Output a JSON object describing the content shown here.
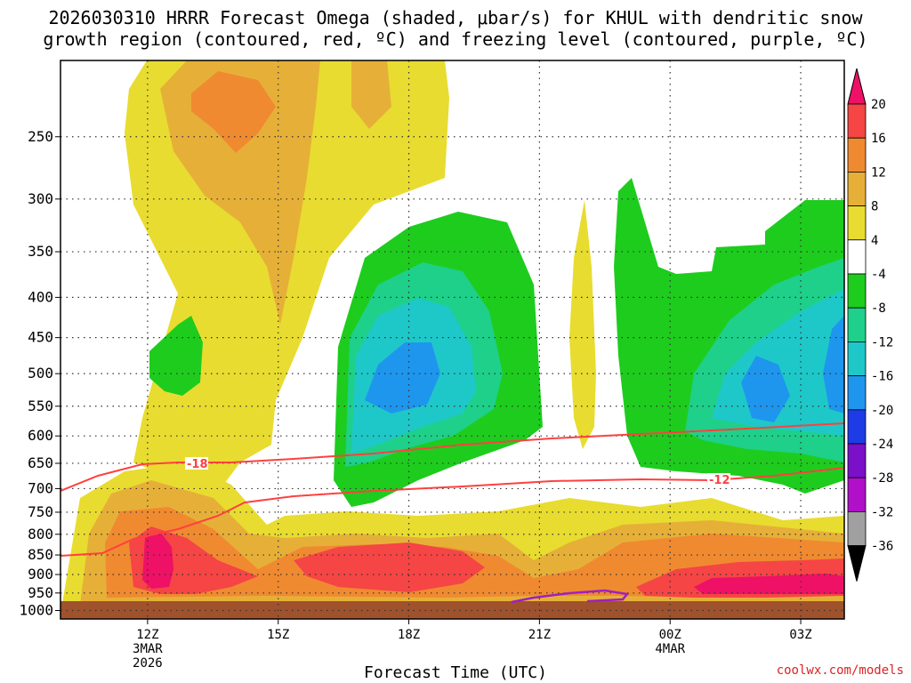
{
  "title_line1": "2026030310 HRRR Forecast Omega (shaded, μbar/s) for KHUL with dendritic snow",
  "title_line2": "growth region (contoured, red, ºC) and freezing level (contoured, purple, ºC)",
  "xaxis_title": "Forecast Time (UTC)",
  "credit": "coolwx.com/models",
  "chart_data": {
    "type": "area",
    "variable": "Omega",
    "units": "μbar/s",
    "y_axis": {
      "ticks": [
        250,
        300,
        350,
        400,
        450,
        500,
        550,
        600,
        650,
        700,
        750,
        800,
        850,
        900,
        950,
        1000
      ],
      "range": [
        200,
        1025
      ],
      "direction": "pressure decreasing upward",
      "scale": "log-pressure"
    },
    "x_axis": {
      "ticks": [
        {
          "label": "12Z",
          "sub": [
            "3MAR",
            "2026"
          ],
          "hour": 12
        },
        {
          "label": "15Z",
          "sub": [],
          "hour": 15
        },
        {
          "label": "18Z",
          "sub": [],
          "hour": 18
        },
        {
          "label": "21Z",
          "sub": [],
          "hour": 21
        },
        {
          "label": "00Z",
          "sub": [
            "4MAR"
          ],
          "hour": 24
        },
        {
          "label": "03Z",
          "sub": [],
          "hour": 27
        }
      ],
      "range_hours": [
        10,
        28
      ]
    },
    "grid": true,
    "colorbar": {
      "labels": [
        20,
        16,
        12,
        8,
        4,
        -4,
        -8,
        -12,
        -16,
        -20,
        -24,
        -28,
        -32,
        -36
      ],
      "colors": [
        "#ee1166",
        "#f54545",
        "#f08a30",
        "#e6b038",
        "#e8dc30",
        "#ffffff",
        "#1ecc1e",
        "#1ed08a",
        "#1ec8c8",
        "#1e96ee",
        "#1e3ce6",
        "#7a10c8",
        "#b010c8",
        "#a0a0a0",
        "#000000"
      ]
    },
    "contour_labels": [
      {
        "text": "-18",
        "color": "#ff4040"
      },
      {
        "text": "-12",
        "color": "#ff4040"
      }
    ],
    "features": [
      {
        "kind": "upward_motion_max",
        "pressure": 880,
        "hour": 12,
        "value": 20
      },
      {
        "kind": "downward_motion_max",
        "pressure": 500,
        "hour": 18,
        "value": -16
      },
      {
        "kind": "downward_motion_max",
        "pressure": 520,
        "hour": 26.5,
        "value": -16
      },
      {
        "kind": "upward_motion_max",
        "pressure": 950,
        "hour": 26.5,
        "value": 20
      }
    ]
  }
}
